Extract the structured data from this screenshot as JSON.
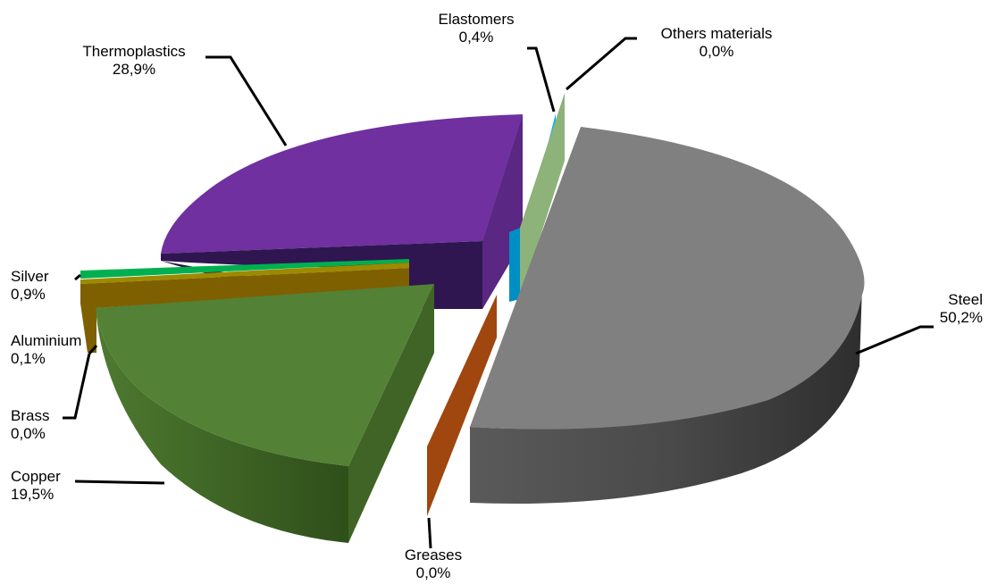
{
  "chart_data": {
    "type": "pie",
    "style": "3d-exploded",
    "slices": [
      {
        "name": "Steel",
        "value": 50.2,
        "value_label": "50,2%",
        "color": "#808080"
      },
      {
        "name": "Greases",
        "value": 0.0,
        "value_label": "0,0%",
        "color": "#a0460f"
      },
      {
        "name": "Copper",
        "value": 19.5,
        "value_label": "19,5%",
        "color": "#538135"
      },
      {
        "name": "Brass",
        "value": 0.0,
        "value_label": "0,0%",
        "color": "#7f6000"
      },
      {
        "name": "Aluminium",
        "value": 0.1,
        "value_label": "0,1%",
        "color": "#9c8a00"
      },
      {
        "name": "Silver",
        "value": 0.9,
        "value_label": "0,9%",
        "color": "#00b050"
      },
      {
        "name": "Thermoplastics",
        "value": 28.9,
        "value_label": "28,9%",
        "color": "#7030a0"
      },
      {
        "name": "Elastomers",
        "value": 0.4,
        "value_label": "0,4%",
        "color": "#00b0f0"
      },
      {
        "name": "Others materials",
        "value": 0.0,
        "value_label": "0,0%",
        "color": "#8db27a"
      }
    ]
  }
}
